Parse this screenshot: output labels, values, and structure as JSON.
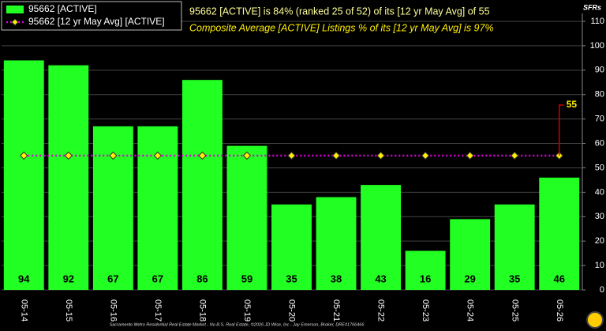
{
  "chart_data": {
    "type": "bar",
    "title": "95662 [ACTIVE] is 84% (ranked 25 of 52) of its [12 yr May Avg] of 55",
    "subtitle": "Composite Average [ACTIVE] Listings % of its [12 yr May Avg] is 97%",
    "y_label": "SFRs",
    "footer": "Sacramento Metro Residential Real Estate Market - No B.S. Real Estate, ©2026 JD Wise, Inc - Jay Emerson, Broker, DRE#1766466",
    "categories": [
      "05-14",
      "05-15",
      "05-16",
      "05-17",
      "05-18",
      "05-19",
      "05-20",
      "05-21",
      "05-22",
      "05-23",
      "05-24",
      "05-25",
      "05-26"
    ],
    "series": [
      {
        "name": "95662 [ACTIVE]",
        "color": "#22ff22",
        "values": [
          94,
          92,
          67,
          67,
          86,
          59,
          35,
          38,
          43,
          16,
          29,
          35,
          46
        ]
      },
      {
        "name": "95662 [12 yr May Avg] [ACTIVE]",
        "color": "#dd00dd",
        "values": [
          55,
          55,
          55,
          55,
          55,
          55,
          55,
          55,
          55,
          55,
          55,
          55,
          55
        ]
      }
    ],
    "ylim": [
      0,
      110
    ],
    "yticks": [
      0,
      10,
      20,
      30,
      40,
      50,
      60,
      70,
      80,
      90,
      100,
      110
    ],
    "grid": true
  }
}
